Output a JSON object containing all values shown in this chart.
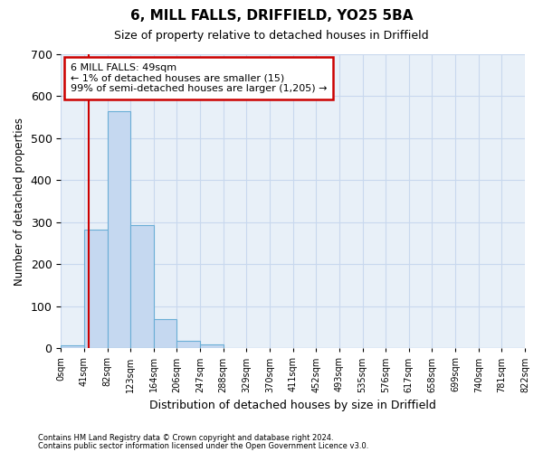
{
  "title": "6, MILL FALLS, DRIFFIELD, YO25 5BA",
  "subtitle": "Size of property relative to detached houses in Driffield",
  "xlabel": "Distribution of detached houses by size in Driffield",
  "ylabel": "Number of detached properties",
  "footer1": "Contains HM Land Registry data © Crown copyright and database right 2024.",
  "footer2": "Contains public sector information licensed under the Open Government Licence v3.0.",
  "bin_labels": [
    "0sqm",
    "41sqm",
    "82sqm",
    "123sqm",
    "164sqm",
    "206sqm",
    "247sqm",
    "288sqm",
    "329sqm",
    "370sqm",
    "411sqm",
    "452sqm",
    "493sqm",
    "535sqm",
    "576sqm",
    "617sqm",
    "658sqm",
    "699sqm",
    "740sqm",
    "781sqm",
    "822sqm"
  ],
  "bar_values": [
    7,
    283,
    565,
    293,
    70,
    18,
    10,
    0,
    0,
    0,
    0,
    0,
    0,
    0,
    0,
    0,
    0,
    0,
    0,
    0
  ],
  "bar_color": "#c5d8f0",
  "bar_edge_color": "#6aaed6",
  "property_line_color": "#cc0000",
  "property_line_x": 1.195,
  "annotation_text": "6 MILL FALLS: 49sqm\n← 1% of detached houses are smaller (15)\n99% of semi-detached houses are larger (1,205) →",
  "annotation_box_color": "#cc0000",
  "ylim": [
    0,
    700
  ],
  "yticks": [
    0,
    100,
    200,
    300,
    400,
    500,
    600,
    700
  ],
  "grid_color": "#c8d8ee",
  "fig_bg_color": "#ffffff",
  "plot_bg_color": "#e8f0f8"
}
